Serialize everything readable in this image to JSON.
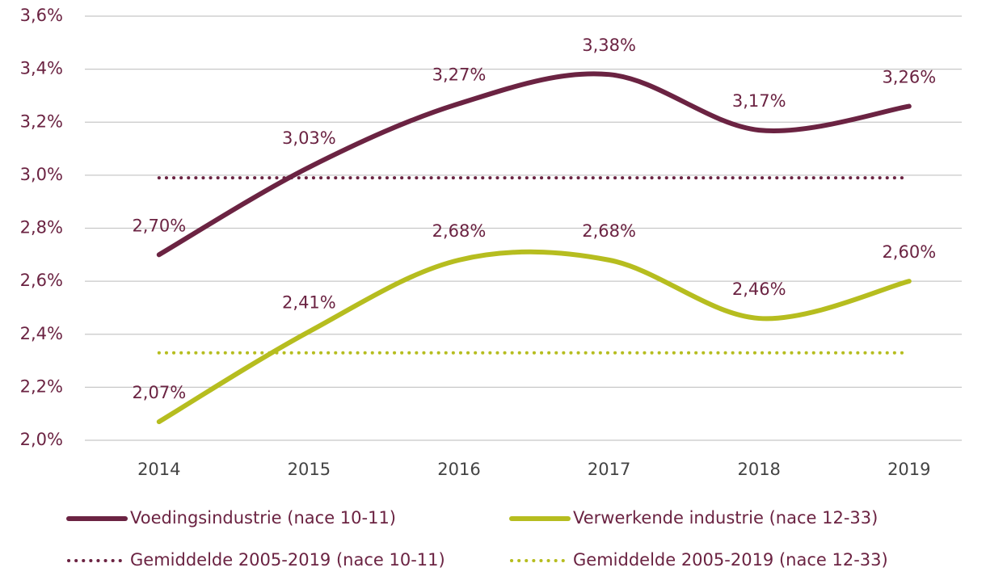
{
  "chart_data": {
    "type": "line",
    "categories": [
      "2014",
      "2015",
      "2016",
      "2017",
      "2018",
      "2019"
    ],
    "series": [
      {
        "name": "Voedingsindustrie (nace 10-11)",
        "color": "#6b2342",
        "style": "solid",
        "values": [
          2.7,
          3.03,
          3.27,
          3.38,
          3.17,
          3.26
        ],
        "value_labels": [
          "2,70%",
          "3,03%",
          "3,27%",
          "3,38%",
          "3,17%",
          "3,26%"
        ]
      },
      {
        "name": "Verwerkende industrie (nace 12-33)",
        "color": "#b6bd1f",
        "style": "solid",
        "values": [
          2.07,
          2.41,
          2.68,
          2.68,
          2.46,
          2.6
        ],
        "value_labels": [
          "2,07%",
          "2,41%",
          "2,68%",
          "2,68%",
          "2,46%",
          "2,60%"
        ]
      },
      {
        "name": "Gemiddelde 2005-2019 (nace 10-11)",
        "color": "#6b2342",
        "style": "dotted",
        "values": [
          2.99,
          2.99,
          2.99,
          2.99,
          2.99,
          2.99
        ]
      },
      {
        "name": "Gemiddelde 2005-2019 (nace 12-33)",
        "color": "#b6bd1f",
        "style": "dotted",
        "values": [
          2.33,
          2.33,
          2.33,
          2.33,
          2.33,
          2.33
        ]
      }
    ],
    "ylim": [
      2.0,
      3.6
    ],
    "yticks": [
      {
        "value": 2.0,
        "label": "2,0%"
      },
      {
        "value": 2.2,
        "label": "2,2%"
      },
      {
        "value": 2.4,
        "label": "2,4%"
      },
      {
        "value": 2.6,
        "label": "2,6%"
      },
      {
        "value": 2.8,
        "label": "2,8%"
      },
      {
        "value": 3.0,
        "label": "3,0%"
      },
      {
        "value": 3.2,
        "label": "3,2%"
      },
      {
        "value": 3.4,
        "label": "3,4%"
      },
      {
        "value": 3.6,
        "label": "3,6%"
      }
    ],
    "grid": true
  }
}
